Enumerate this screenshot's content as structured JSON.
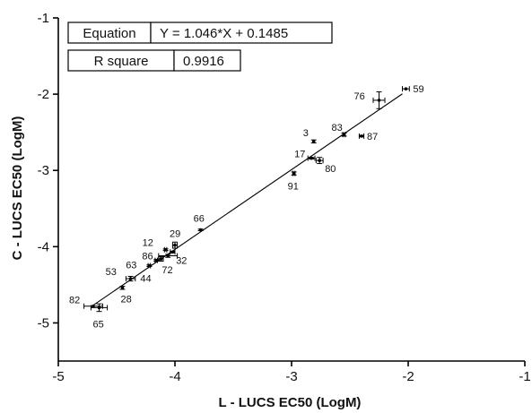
{
  "chart_data": {
    "type": "scatter",
    "xlabel": "L - LUCS EC50 (LogM)",
    "ylabel": "C - LUCS EC50 (LogM)",
    "xlim": [
      -5,
      -1
    ],
    "ylim": [
      -5.5,
      -1
    ],
    "x_ticks": [
      -5,
      -4,
      -3,
      -2,
      -1
    ],
    "y_ticks": [
      -5,
      -4,
      -3,
      -2,
      -1
    ],
    "x_tick_labels": [
      "-5",
      "-4",
      "-3",
      "-2",
      "-1"
    ],
    "y_tick_labels": [
      "-5",
      "-4",
      "-3",
      "-2",
      "-1"
    ],
    "fit": {
      "slope": 1.046,
      "intercept": 0.1485
    },
    "stats_table": [
      {
        "label": "Equation",
        "value": "Y = 1.046*X + 0.1485"
      },
      {
        "label": "R square",
        "value": "0.9916"
      }
    ],
    "points": [
      {
        "label": "59",
        "x": -2.02,
        "y": -1.93,
        "xerr": 0.03,
        "yerr": 0
      },
      {
        "label": "76",
        "x": -2.25,
        "y": -2.08,
        "xerr": 0.05,
        "yerr": 0.11
      },
      {
        "label": "83",
        "x": -2.55,
        "y": -2.53,
        "xerr": 0.01,
        "yerr": 0.02
      },
      {
        "label": "87",
        "x": -2.4,
        "y": -2.55,
        "xerr": 0.02,
        "yerr": 0.01
      },
      {
        "label": "3",
        "x": -2.81,
        "y": -2.62,
        "xerr": 0,
        "yerr": 0.02
      },
      {
        "label": "17",
        "x": -2.83,
        "y": -2.84,
        "xerr": 0.03,
        "yerr": 0.01
      },
      {
        "label": "80",
        "x": -2.76,
        "y": -2.87,
        "xerr": 0.03,
        "yerr": 0.04
      },
      {
        "label": "91",
        "x": -2.98,
        "y": -3.04,
        "xerr": 0.01,
        "yerr": 0.02
      },
      {
        "label": "66",
        "x": -3.78,
        "y": -3.78,
        "xerr": 0,
        "yerr": 0.01
      },
      {
        "label": "29",
        "x": -4.0,
        "y": -3.98,
        "xerr": 0.02,
        "yerr": 0.04
      },
      {
        "label": "12",
        "x": -4.08,
        "y": -4.04,
        "xerr": 0.01,
        "yerr": 0.01
      },
      {
        "label": "86",
        "x": -4.02,
        "y": -4.07,
        "xerr": 0.02,
        "yerr": 0.01
      },
      {
        "label": "32",
        "x": -4.06,
        "y": -4.12,
        "xerr": 0.08,
        "yerr": 0.02
      },
      {
        "label": "63",
        "x": -4.16,
        "y": -4.18,
        "xerr": 0.01,
        "yerr": 0.01
      },
      {
        "label": "72",
        "x": -4.12,
        "y": -4.16,
        "xerr": 0.02,
        "yerr": 0.03
      },
      {
        "label": "44",
        "x": -4.22,
        "y": -4.25,
        "xerr": 0.01,
        "yerr": 0.01
      },
      {
        "label": "53",
        "x": -4.38,
        "y": -4.42,
        "xerr": 0.04,
        "yerr": 0.03
      },
      {
        "label": "28",
        "x": -4.45,
        "y": -4.54,
        "xerr": 0,
        "yerr": 0.02
      },
      {
        "label": "82",
        "x": -4.7,
        "y": -4.78,
        "xerr": 0.08,
        "yerr": 0
      },
      {
        "label": "65",
        "x": -4.65,
        "y": -4.8,
        "xerr": 0.07,
        "yerr": 0.05
      }
    ]
  }
}
